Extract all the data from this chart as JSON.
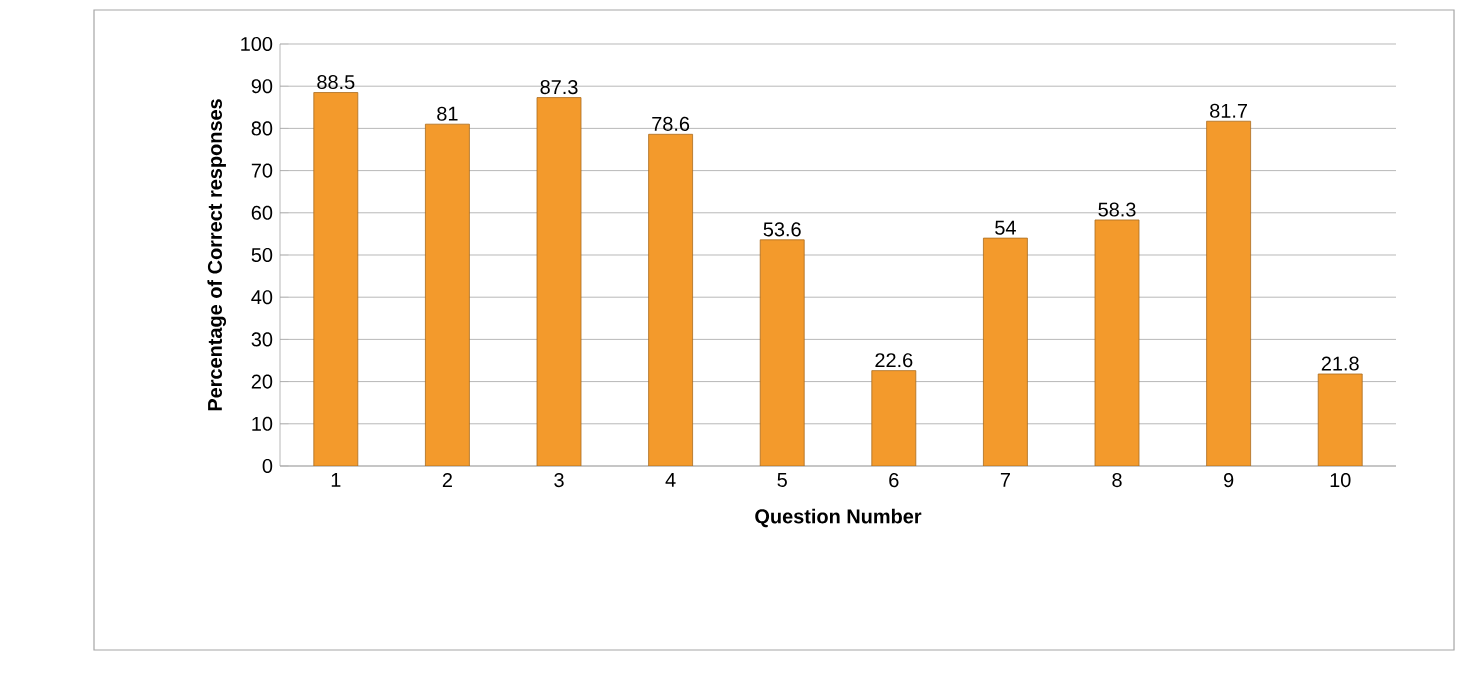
{
  "chart_data": {
    "type": "bar",
    "categories": [
      "1",
      "2",
      "3",
      "4",
      "5",
      "6",
      "7",
      "8",
      "9",
      "10"
    ],
    "values": [
      88.5,
      81,
      87.3,
      78.6,
      53.6,
      22.6,
      54,
      58.3,
      81.7,
      21.8
    ],
    "color": "#f39a2c",
    "xlabel": "Question Number",
    "ylabel": "Percentage of Correct responses",
    "ylim": [
      0,
      100
    ],
    "yticks": [
      0,
      10,
      20,
      30,
      40,
      50,
      60,
      70,
      80,
      90,
      100
    ],
    "grid": "y",
    "data_labels": true
  }
}
